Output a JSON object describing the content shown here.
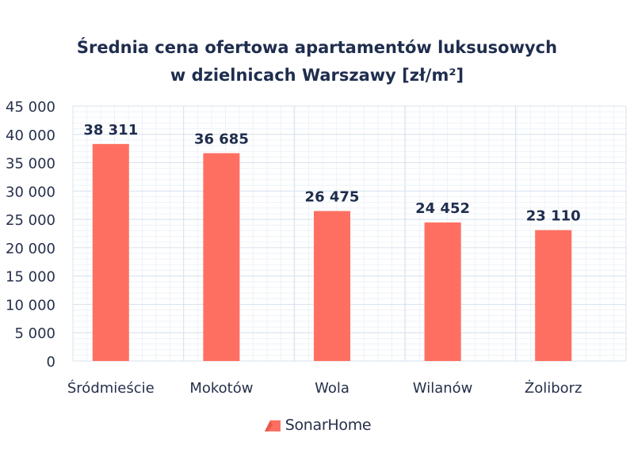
{
  "chart_data": {
    "type": "bar",
    "title_line1": "Średnia cena ofertowa apartamentów luksusowych",
    "title_line2": "w dzielnicach Warszawy [zł/m²]",
    "categories": [
      "Śródmieście",
      "Mokotów",
      "Wola",
      "Wilanów",
      "Żoliborz"
    ],
    "values": [
      38311,
      36685,
      26475,
      24452,
      23110
    ],
    "value_labels": [
      "38 311",
      "36 685",
      "26 475",
      "24 452",
      "23 110"
    ],
    "ylim": [
      0,
      45000
    ],
    "y_ticks": [
      0,
      5000,
      10000,
      15000,
      20000,
      25000,
      30000,
      35000,
      40000,
      45000
    ],
    "y_tick_labels": [
      "0",
      "5 000",
      "10 000",
      "15 000",
      "20 000",
      "25 000",
      "30 000",
      "35 000",
      "40 000",
      "45 000"
    ],
    "bar_color": "#ff6f61",
    "grid": true,
    "legend": "none"
  },
  "brand": {
    "logo_text": "SonarHome",
    "logo_color": "#ff6f61",
    "logo_icon": "house-roof-icon"
  }
}
